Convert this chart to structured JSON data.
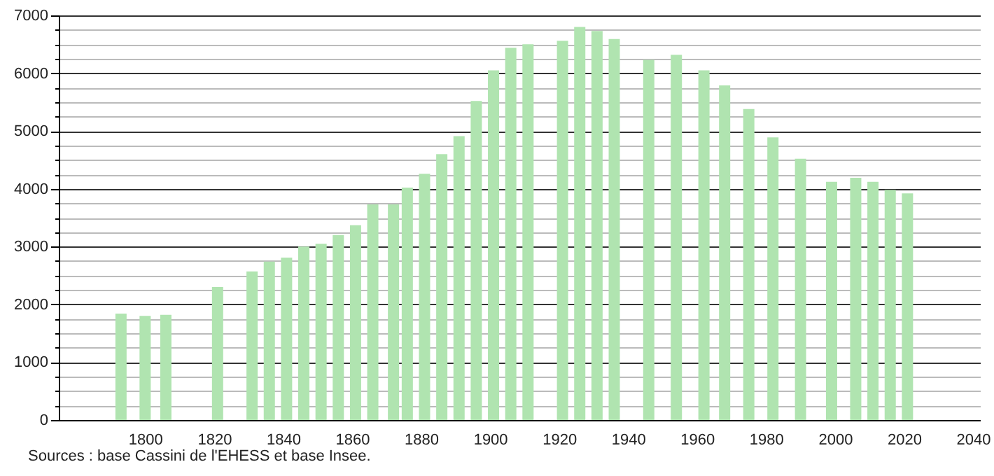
{
  "chart_data": {
    "type": "bar",
    "x": [
      1793,
      1800,
      1806,
      1821,
      1831,
      1836,
      1841,
      1846,
      1851,
      1856,
      1861,
      1866,
      1872,
      1876,
      1881,
      1886,
      1891,
      1896,
      1901,
      1906,
      1911,
      1921,
      1926,
      1931,
      1936,
      1946,
      1954,
      1962,
      1968,
      1975,
      1982,
      1990,
      1999,
      2006,
      2011,
      2016,
      2021
    ],
    "values": [
      1840,
      1800,
      1820,
      2300,
      2570,
      2740,
      2810,
      3000,
      3050,
      3200,
      3370,
      3730,
      3730,
      4020,
      4260,
      4600,
      4910,
      5520,
      6050,
      6440,
      6500,
      6560,
      6800,
      6730,
      6590,
      6230,
      6320,
      6050,
      5790,
      5380,
      4890,
      4520,
      4120,
      4190,
      4120,
      3980,
      3920
    ],
    "color": "#b0e4b0",
    "xlim": [
      1777,
      2040
    ],
    "xticks": [
      1800,
      1820,
      1840,
      1860,
      1880,
      1900,
      1920,
      1940,
      1960,
      1980,
      2000,
      2020,
      2040
    ],
    "ylim": [
      0,
      7000
    ],
    "yticks": [
      0,
      {
        "value": 250,
        "label": null
      },
      {
        "value": 500,
        "label": null
      },
      {
        "value": 750,
        "label": null
      },
      1000,
      {
        "value": 1250,
        "label": null
      },
      {
        "value": 1500,
        "label": null
      },
      {
        "value": 1750,
        "label": null
      },
      2000,
      {
        "value": 2250,
        "label": null
      },
      {
        "value": 2500,
        "label": null
      },
      {
        "value": 2750,
        "label": null
      },
      3000,
      {
        "value": 3250,
        "label": null
      },
      {
        "value": 3500,
        "label": null
      },
      {
        "value": 3750,
        "label": null
      },
      4000,
      {
        "value": 4250,
        "label": null
      },
      {
        "value": 4500,
        "label": null
      },
      {
        "value": 4750,
        "label": null
      },
      5000,
      {
        "value": 5250,
        "label": null
      },
      {
        "value": 5500,
        "label": null
      },
      {
        "value": 5750,
        "label": null
      },
      6000,
      {
        "value": 6250,
        "label": null
      },
      {
        "value": 6500,
        "label": null
      },
      {
        "value": 6750,
        "label": null
      },
      7000
    ],
    "grid": "y",
    "annotations": [
      "Sources : base Cassini de l'EHESS et base Insee."
    ]
  }
}
